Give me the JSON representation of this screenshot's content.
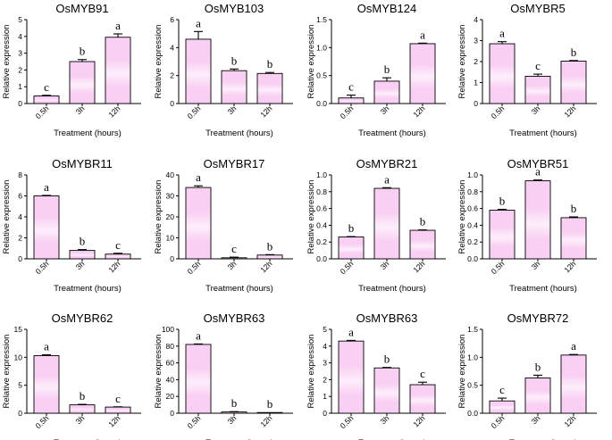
{
  "colors": {
    "bar_fill": "#f9d0f3",
    "bar_highlight": "#fdeefb",
    "axis": "#000000"
  },
  "chart_data": [
    {
      "type": "bar",
      "title": "OsMYB91",
      "xlabel": "Treatment (hours)",
      "ylabel": "Relative expression",
      "categories": [
        "0.5h",
        "3h",
        "12h"
      ],
      "values": [
        0.45,
        2.5,
        3.95
      ],
      "errors": [
        0.04,
        0.12,
        0.2
      ],
      "significance": [
        "c",
        "b",
        "a"
      ],
      "ylim": [
        0,
        5
      ],
      "yticks": [
        0,
        1,
        2,
        3,
        4,
        5
      ]
    },
    {
      "type": "bar",
      "title": "OsMYB103",
      "xlabel": "Treatment (hours)",
      "ylabel": "Relative expression",
      "categories": [
        "0.5h",
        "3h",
        "12h"
      ],
      "values": [
        4.6,
        2.35,
        2.15
      ],
      "errors": [
        0.55,
        0.12,
        0.07
      ],
      "significance": [
        "a",
        "b",
        "b"
      ],
      "ylim": [
        0,
        6
      ],
      "yticks": [
        0,
        2,
        4,
        6
      ]
    },
    {
      "type": "bar",
      "title": "OsMYB124",
      "xlabel": "Treatment (hours)",
      "ylabel": "Relative expression",
      "categories": [
        "0.5h",
        "3h",
        "12h"
      ],
      "values": [
        0.1,
        0.4,
        1.07
      ],
      "errors": [
        0.05,
        0.06,
        0.01
      ],
      "significance": [
        "c",
        "b",
        "a"
      ],
      "ylim": [
        0,
        1.5
      ],
      "yticks": [
        0,
        0.5,
        1.0,
        1.5
      ]
    },
    {
      "type": "bar",
      "title": "OsMYBR5",
      "xlabel": "Treatment (hours)",
      "ylabel": "Relative expression",
      "categories": [
        "0.5h",
        "3h",
        "12h"
      ],
      "values": [
        2.85,
        1.3,
        2.02
      ],
      "errors": [
        0.1,
        0.1,
        0.03
      ],
      "significance": [
        "a",
        "c",
        "b"
      ],
      "ylim": [
        0,
        4
      ],
      "yticks": [
        0,
        1,
        2,
        3,
        4
      ]
    },
    {
      "type": "bar",
      "title": "OsMYBR11",
      "xlabel": "Treatment (hours)",
      "ylabel": "Relative expression",
      "categories": [
        "0.5h",
        "3h",
        "12h"
      ],
      "values": [
        6.0,
        0.8,
        0.45
      ],
      "errors": [
        0.05,
        0.08,
        0.08
      ],
      "significance": [
        "a",
        "b",
        "c"
      ],
      "ylim": [
        0,
        8
      ],
      "yticks": [
        0,
        2,
        4,
        6,
        8
      ]
    },
    {
      "type": "bar",
      "title": "OsMYBR17",
      "xlabel": "Treatment (hours)",
      "ylabel": "Relative expression",
      "categories": [
        "0.5h",
        "3h",
        "12h"
      ],
      "values": [
        34,
        0.5,
        1.8
      ],
      "errors": [
        0.8,
        0.3,
        0.2
      ],
      "significance": [
        "a",
        "c",
        "b"
      ],
      "ylim": [
        0,
        40
      ],
      "yticks": [
        0,
        10,
        20,
        30,
        40
      ]
    },
    {
      "type": "bar",
      "title": "OsMYBR21",
      "xlabel": "Treatment (hours)",
      "ylabel": "Relative expression",
      "categories": [
        "0.5h",
        "3h",
        "12h"
      ],
      "values": [
        0.26,
        0.84,
        0.34
      ],
      "errors": [
        0.005,
        0.008,
        0.005
      ],
      "significance": [
        "b",
        "a",
        "b"
      ],
      "ylim": [
        0,
        1.0
      ],
      "yticks": [
        0,
        0.2,
        0.4,
        0.6,
        0.8,
        1.0
      ]
    },
    {
      "type": "bar",
      "title": "OsMYBR51",
      "xlabel": "Treatment (hours)",
      "ylabel": "Relative expression",
      "categories": [
        "0.5h",
        "3h",
        "12h"
      ],
      "values": [
        0.58,
        0.93,
        0.49
      ],
      "errors": [
        0.01,
        0.01,
        0.01
      ],
      "significance": [
        "b",
        "a",
        "b"
      ],
      "ylim": [
        0,
        1.0
      ],
      "yticks": [
        0,
        0.2,
        0.4,
        0.6,
        0.8,
        1.0
      ]
    },
    {
      "type": "bar",
      "title": "OsMYBR62",
      "xlabel": "Treatment (hours)",
      "ylabel": "Relative expression",
      "categories": [
        "0.5h",
        "3h",
        "12h"
      ],
      "values": [
        10.3,
        1.5,
        1.1
      ],
      "errors": [
        0.15,
        0.08,
        0.05
      ],
      "significance": [
        "a",
        "b",
        "c"
      ],
      "ylim": [
        0,
        15
      ],
      "yticks": [
        0,
        5,
        10,
        15
      ]
    },
    {
      "type": "bar",
      "title": "OsMYBR63",
      "xlabel": "Treatment (hours)",
      "ylabel": "Relative expression",
      "categories": [
        "0.5h",
        "3h",
        "12h"
      ],
      "values": [
        82,
        1.5,
        0.3
      ],
      "errors": [
        0.6,
        0.4,
        0.1
      ],
      "significance": [
        "a",
        "b",
        "b"
      ],
      "ylim": [
        0,
        100
      ],
      "yticks": [
        0,
        20,
        40,
        60,
        80,
        100
      ]
    },
    {
      "type": "bar",
      "title": "OsMYBR63",
      "xlabel": "Treatment (hours)",
      "ylabel": "Relative expression",
      "categories": [
        "0.5h",
        "3h",
        "12h"
      ],
      "values": [
        4.3,
        2.7,
        1.7
      ],
      "errors": [
        0.04,
        0.03,
        0.15
      ],
      "significance": [
        "a",
        "b",
        "c"
      ],
      "ylim": [
        0,
        5
      ],
      "yticks": [
        0,
        1,
        2,
        3,
        4,
        5
      ]
    },
    {
      "type": "bar",
      "title": "OsMYBR72",
      "xlabel": "Treatment (hours)",
      "ylabel": "Relative expression",
      "categories": [
        "0.5h",
        "3h",
        "12h"
      ],
      "values": [
        0.22,
        0.63,
        1.04
      ],
      "errors": [
        0.05,
        0.05,
        0.01
      ],
      "significance": [
        "c",
        "b",
        "a"
      ],
      "ylim": [
        0,
        1.5
      ],
      "yticks": [
        0,
        0.5,
        1.0,
        1.5
      ]
    }
  ]
}
